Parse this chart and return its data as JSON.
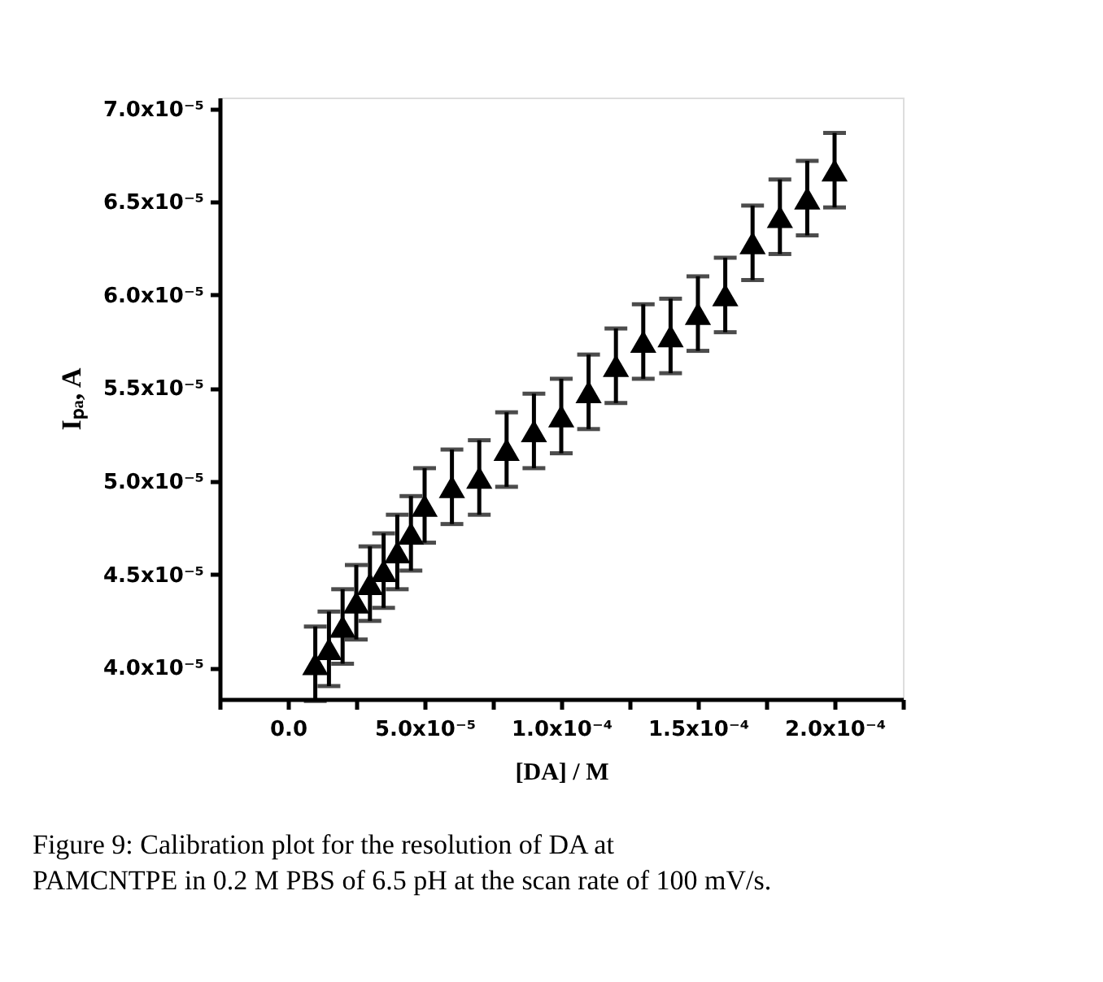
{
  "chart_data": {
    "type": "scatter",
    "xlabel": "[DA] / M",
    "ylabel": "Iₚₐ, A",
    "x": [
      1e-05,
      1.5e-05,
      2e-05,
      2.5e-05,
      3e-05,
      3.5e-05,
      4e-05,
      4.5e-05,
      5e-05,
      6e-05,
      7e-05,
      8e-05,
      9e-05,
      0.0001,
      0.00011,
      0.00012,
      0.00013,
      0.00014,
      0.00015,
      0.00016,
      0.00017,
      0.00018,
      0.00019,
      0.0002
    ],
    "series": [
      {
        "color": "#000000",
        "marker": "triangle",
        "values": [
          4.02e-05,
          4.1e-05,
          4.22e-05,
          4.35e-05,
          4.45e-05,
          4.52e-05,
          4.62e-05,
          4.72e-05,
          4.87e-05,
          4.97e-05,
          5.02e-05,
          5.17e-05,
          5.27e-05,
          5.35e-05,
          5.48e-05,
          5.62e-05,
          5.75e-05,
          5.78e-05,
          5.9e-05,
          6e-05,
          6.28e-05,
          6.42e-05,
          6.52e-05,
          6.67e-05
        ],
        "errors": [
          2e-06,
          2e-06,
          2e-06,
          2e-06,
          2e-06,
          2e-06,
          2e-06,
          2e-06,
          2e-06,
          2e-06,
          2e-06,
          2e-06,
          2e-06,
          2e-06,
          2e-06,
          2e-06,
          2e-06,
          2e-06,
          2e-06,
          2e-06,
          2e-06,
          2e-06,
          2e-06,
          2e-06
        ]
      }
    ],
    "xlim": [
      -2.5e-05,
      0.000225
    ],
    "xticks": [
      {
        "value": -2.5e-05,
        "label": null
      },
      {
        "value": 0,
        "label": "0.0"
      },
      {
        "value": 2.5e-05,
        "label": null
      },
      {
        "value": 5e-05,
        "label": "5.0x10⁻⁵"
      },
      {
        "value": 7.5e-05,
        "label": null
      },
      {
        "value": 0.0001,
        "label": "1.0x10⁻⁴"
      },
      {
        "value": 0.000125,
        "label": null
      },
      {
        "value": 0.00015,
        "label": "1.5x10⁻⁴"
      },
      {
        "value": 0.000175,
        "label": null
      },
      {
        "value": 0.0002,
        "label": "2.0x10⁻⁴"
      },
      {
        "value": 0.000225,
        "label": null
      }
    ],
    "ylim": [
      3.83e-05,
      7.06e-05
    ],
    "yticks": [
      {
        "value": 4e-05,
        "label": "4.0x10⁻⁵"
      },
      {
        "value": 4.5e-05,
        "label": "4.5x10⁻⁵"
      },
      {
        "value": 5e-05,
        "label": "5.0x10⁻⁵"
      },
      {
        "value": 5.5e-05,
        "label": "5.5x10⁻⁵"
      },
      {
        "value": 6e-05,
        "label": "6.0x10⁻⁵"
      },
      {
        "value": 6.5e-05,
        "label": "6.5x10⁻⁵"
      },
      {
        "value": 7e-05,
        "label": "7.0x10⁻⁵"
      }
    ],
    "grid": false,
    "annotations": [
      "Figure 9: Calibration plot for the resolution of DA at PAMCNTPE in 0.2 M PBS of 6.5 pH at the scan rate of 100 mV/s."
    ]
  }
}
